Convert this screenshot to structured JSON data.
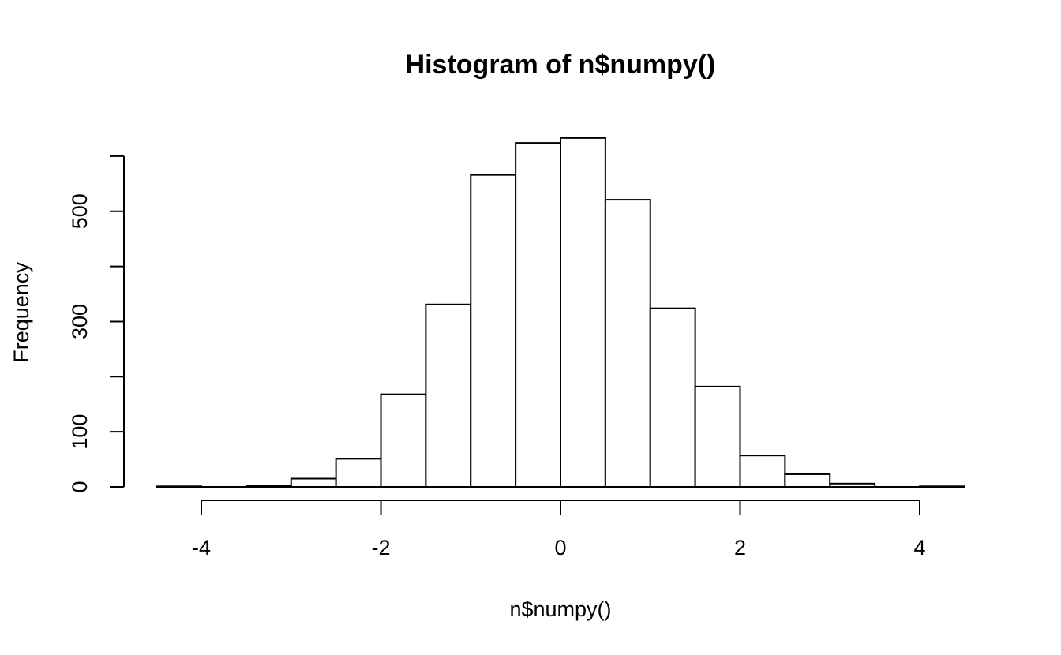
{
  "chart_data": {
    "type": "bar",
    "title": "Histogram of n$numpy()",
    "xlabel": "n$numpy()",
    "ylabel": "Frequency",
    "bin_edges": [
      -4.5,
      -4.0,
      -3.5,
      -3.0,
      -2.5,
      -2.0,
      -1.5,
      -1.0,
      -0.5,
      0.0,
      0.5,
      1.0,
      1.5,
      2.0,
      2.5,
      3.0,
      3.5,
      4.0,
      4.5
    ],
    "values": [
      1,
      0,
      2,
      15,
      51,
      168,
      331,
      566,
      624,
      633,
      521,
      324,
      182,
      57,
      23,
      6,
      0,
      1
    ],
    "xlim": [
      -4.5,
      4.5
    ],
    "ylim": [
      0,
      633
    ],
    "x_ticks": [
      -4,
      -2,
      0,
      2,
      4
    ],
    "x_tick_labels": [
      "-4",
      "-2",
      "0",
      "2",
      "4"
    ],
    "y_ticks": [
      0,
      100,
      200,
      300,
      400,
      500,
      600
    ],
    "y_tick_labels": [
      "0",
      "100",
      "",
      "300",
      "",
      "500",
      ""
    ],
    "grid": false,
    "legend": "none"
  }
}
